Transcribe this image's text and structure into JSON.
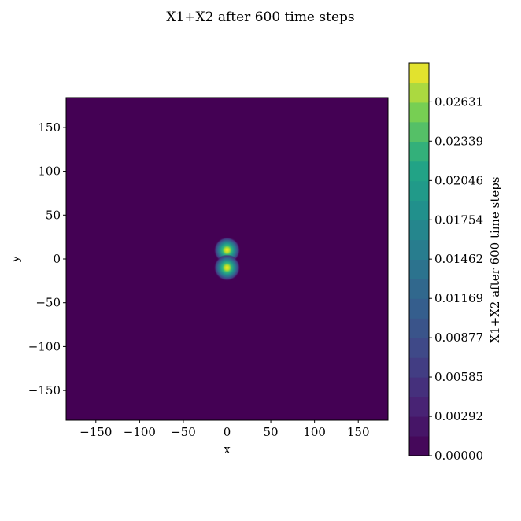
{
  "chart_data": {
    "type": "heatmap",
    "title": "X1+X2 after 600 time steps",
    "xlabel": "x",
    "ylabel": "y",
    "xlim": [
      -184,
      184
    ],
    "ylim": [
      -184,
      184
    ],
    "x_ticks": [
      -150,
      -100,
      -50,
      0,
      50,
      100,
      150
    ],
    "y_ticks": [
      150,
      100,
      50,
      0,
      -50,
      -100,
      -150
    ],
    "x_tick_labels": [
      "−150",
      "−100",
      "−50",
      "0",
      "50",
      "100",
      "150"
    ],
    "y_tick_labels": [
      "150",
      "100",
      "50",
      "0",
      "−50",
      "−100",
      "−150"
    ],
    "peaks": [
      {
        "x": 0,
        "y": 10,
        "value": 0.0285
      },
      {
        "x": 0,
        "y": -10,
        "value": 0.0285
      }
    ],
    "colorbar": {
      "label": "X1+X2 after 600 time steps",
      "colormap": "viridis",
      "vmin": 0.0,
      "vmax": 0.0292,
      "ticks": [
        0.0,
        0.00292,
        0.00585,
        0.00877,
        0.01169,
        0.01462,
        0.01754,
        0.02046,
        0.02339,
        0.02631
      ],
      "tick_labels": [
        "0.00000",
        "0.00292",
        "0.00585",
        "0.00877",
        "0.01169",
        "0.01462",
        "0.01754",
        "0.02046",
        "0.02339",
        "0.02631"
      ]
    }
  }
}
